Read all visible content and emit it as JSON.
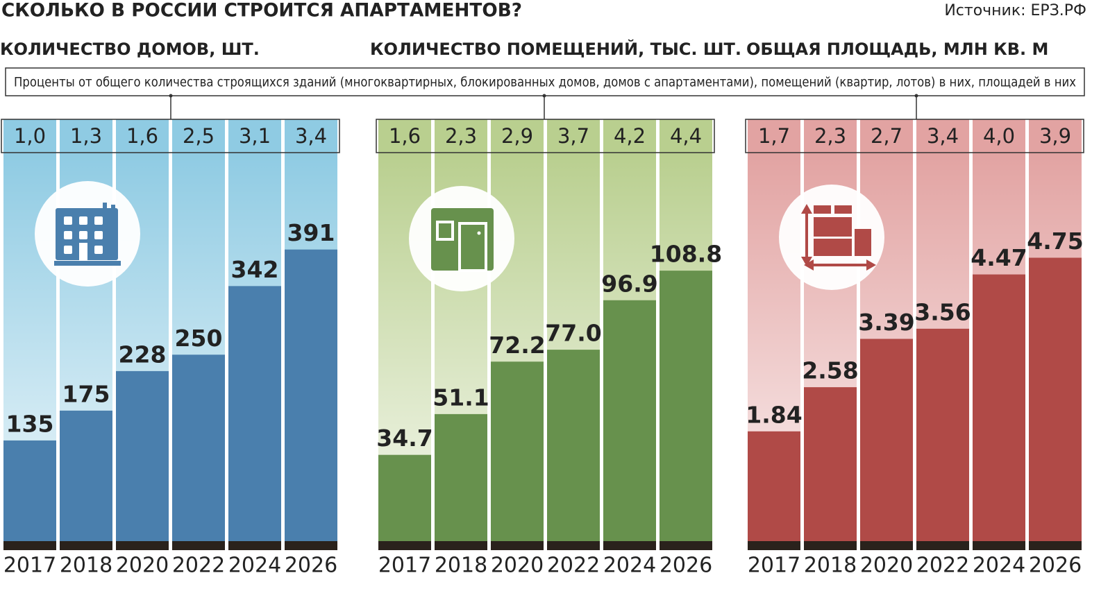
{
  "title": "СКОЛЬКО В РОССИИ СТРОИТСЯ АПАРТАМЕНТОВ?",
  "source": "Источник: ЕРЗ.РФ",
  "note": "Проценты от общего количества строящихся зданий (многоквартирных, блокированных домов, домов с апартаментами), помещений (квартир, лотов) в них, площадей в них",
  "chart_data": [
    {
      "type": "bar",
      "title": "КОЛИЧЕСТВО ДОМОВ, ШТ.",
      "categories": [
        "2017",
        "2018",
        "2020",
        "2022",
        "2024",
        "2026"
      ],
      "values": [
        135,
        175,
        228,
        250,
        342,
        391
      ],
      "share_labels": [
        "1,0",
        "1,3",
        "1,6",
        "2,5",
        "3,1",
        "3,4"
      ],
      "color": "#4a7fad",
      "band_color": "#8fcbe3",
      "ylim": [
        0,
        400
      ]
    },
    {
      "type": "bar",
      "title": "КОЛИЧЕСТВО ПОМЕЩЕНИЙ, ТЫС. ШТ.",
      "categories": [
        "2017",
        "2018",
        "2020",
        "2022",
        "2024",
        "2026"
      ],
      "values": [
        34.7,
        51.1,
        72.2,
        77.0,
        96.9,
        108.8
      ],
      "value_labels": [
        "34.7",
        "51.1",
        "72.2",
        "77.0",
        "96.9",
        "108.8"
      ],
      "share_labels": [
        "1,6",
        "2,3",
        "2,9",
        "3,7",
        "4,2",
        "4,4"
      ],
      "color": "#67914d",
      "band_color": "#b9cf8f",
      "ylim": [
        0,
        120
      ]
    },
    {
      "type": "bar",
      "title": "ОБЩАЯ ПЛОЩАДЬ, МЛН КВ. М",
      "categories": [
        "2017",
        "2018",
        "2020",
        "2022",
        "2024",
        "2026"
      ],
      "values": [
        1.84,
        2.58,
        3.39,
        3.56,
        4.47,
        4.75
      ],
      "share_labels": [
        "1,7",
        "2,3",
        "2,7",
        "3,4",
        "4,0",
        "3,9"
      ],
      "color": "#b04a47",
      "band_color": "#e2a3a2",
      "ylim": [
        0,
        5
      ]
    }
  ]
}
